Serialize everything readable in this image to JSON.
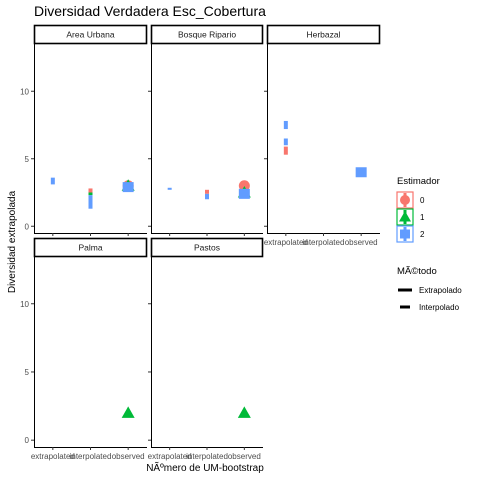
{
  "chart_data": {
    "type": "scatter",
    "title": "Diversidad Verdadera Esc_Cobertura",
    "xlabel": "NÃºmero de UM-bootstrap",
    "ylabel": "Diversidad extrapolada",
    "x_categories": [
      "extrapolated",
      "interpolated",
      "observed"
    ],
    "y_ticks": [
      0,
      5,
      10
    ],
    "ylim": [
      -0.5,
      13.5
    ],
    "legend_estimador": {
      "title": "Estimador",
      "entries": [
        {
          "label": "0",
          "color": "#F8766D",
          "shape": "circle"
        },
        {
          "label": "1",
          "color": "#00BA38",
          "shape": "triangle"
        },
        {
          "label": "2",
          "color": "#619CFF",
          "shape": "square"
        }
      ]
    },
    "legend_metodo": {
      "title": "MÃ©todo",
      "entries": [
        {
          "label": "Extrapolado",
          "style": "solid"
        },
        {
          "label": "Interpolado",
          "style": "dashed"
        }
      ]
    },
    "panels": [
      {
        "name": "Area Urbana",
        "show_x_ticks": false,
        "show_y_ticks": true,
        "segments": [
          {
            "x": "extrapolated",
            "estimador": "2",
            "y0": 3.1,
            "y1": 3.6
          },
          {
            "x": "interpolated",
            "estimador": "0",
            "y0": 2.5,
            "y1": 2.8
          },
          {
            "x": "interpolated",
            "estimador": "1",
            "y0": 2.3,
            "y1": 2.5
          },
          {
            "x": "interpolated",
            "estimador": "2",
            "y0": 1.3,
            "y1": 2.3
          }
        ],
        "points": [
          {
            "x": "observed",
            "estimador": "0",
            "y": 3.0
          },
          {
            "x": "observed",
            "estimador": "1",
            "y": 3.0
          },
          {
            "x": "observed",
            "estimador": "2",
            "y": 2.9
          }
        ]
      },
      {
        "name": "Bosque Ripario",
        "show_x_ticks": false,
        "show_y_ticks": false,
        "segments": [
          {
            "x": "extrapolated",
            "estimador": "2",
            "y0": 2.7,
            "y1": 2.85
          },
          {
            "x": "interpolated",
            "estimador": "0",
            "y0": 2.4,
            "y1": 2.7
          },
          {
            "x": "interpolated",
            "estimador": "2",
            "y0": 2.0,
            "y1": 2.4
          }
        ],
        "points": [
          {
            "x": "observed",
            "estimador": "0",
            "y": 3.0
          },
          {
            "x": "observed",
            "estimador": "1",
            "y": 2.5
          },
          {
            "x": "observed",
            "estimador": "2",
            "y": 2.4
          }
        ]
      },
      {
        "name": "Herbazal",
        "show_x_ticks": true,
        "show_y_ticks": false,
        "segments": [
          {
            "x": "extrapolated",
            "estimador": "2",
            "y0": 7.2,
            "y1": 7.8
          },
          {
            "x": "extrapolated",
            "estimador": "2",
            "y0": 6.0,
            "y1": 6.5
          },
          {
            "x": "extrapolated",
            "estimador": "0",
            "y0": 5.3,
            "y1": 5.9
          }
        ],
        "points": [
          {
            "x": "observed",
            "estimador": "2",
            "y": 4.0
          }
        ]
      },
      {
        "name": "Palma",
        "show_x_ticks": true,
        "show_y_ticks": true,
        "segments": [],
        "points": [
          {
            "x": "observed",
            "estimador": "1",
            "y": 2.0
          }
        ]
      },
      {
        "name": "Pastos",
        "show_x_ticks": true,
        "show_y_ticks": false,
        "segments": [],
        "points": [
          {
            "x": "observed",
            "estimador": "1",
            "y": 2.0
          }
        ]
      }
    ]
  }
}
